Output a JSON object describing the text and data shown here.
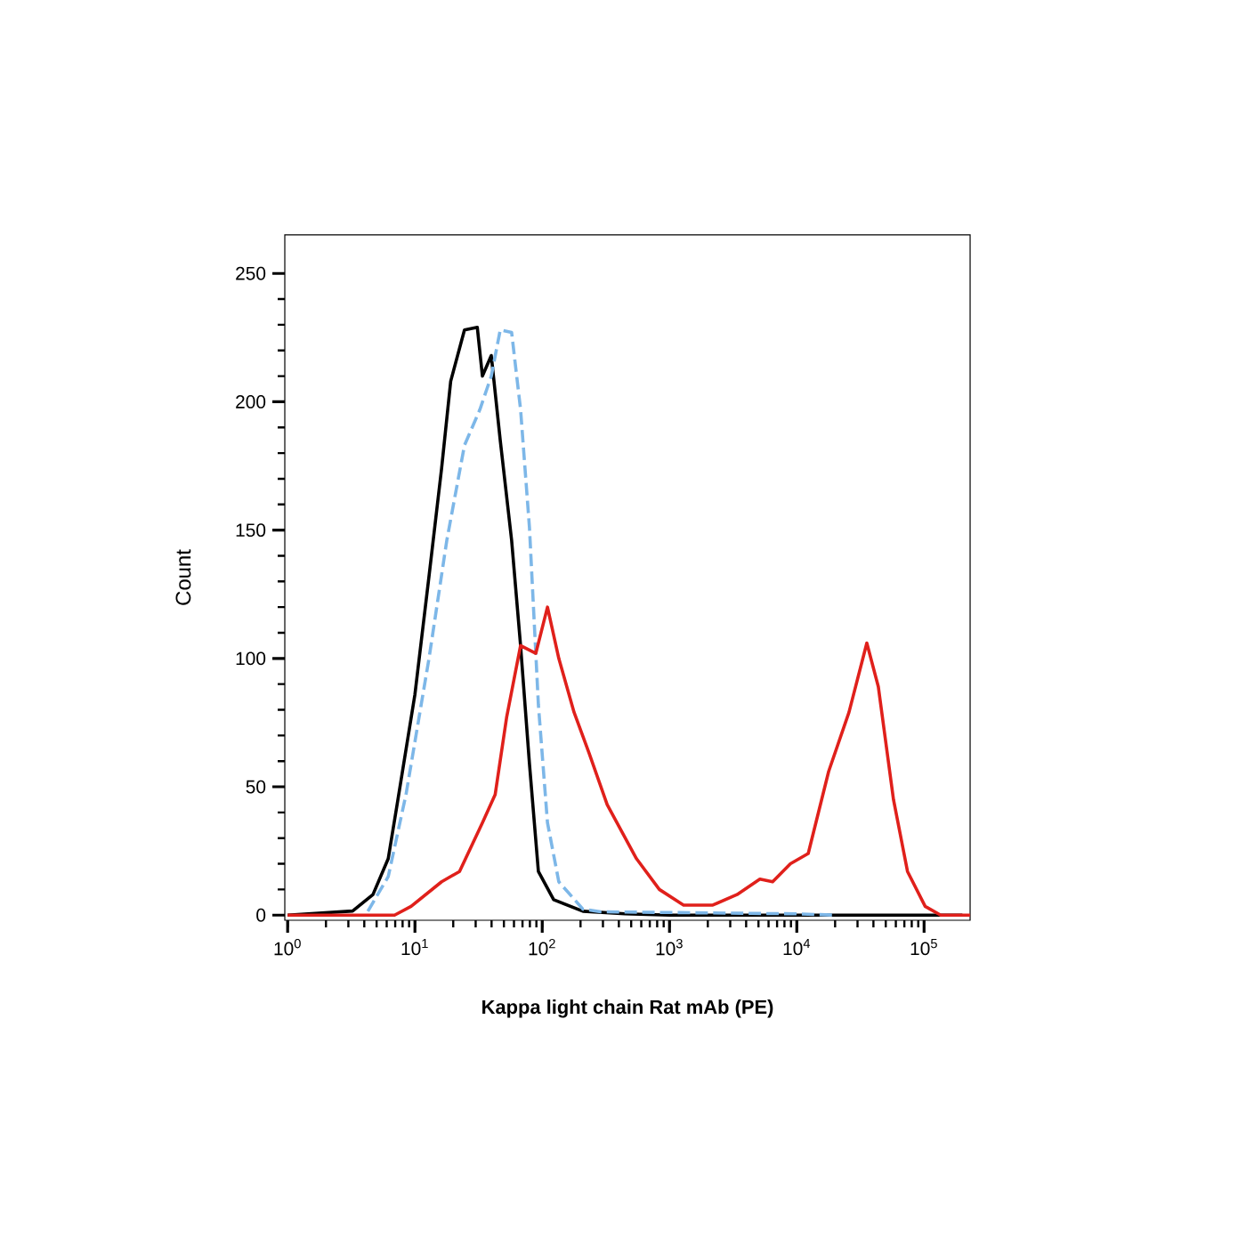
{
  "chart_data": {
    "type": "line",
    "xlabel": "Kappa light chain Rat mAb (PE)",
    "ylabel": "Count",
    "log": "x",
    "xlim": [
      0.95,
      230000
    ],
    "ylim": [
      -2,
      265
    ],
    "xticks": [
      {
        "value": 1,
        "label": "10$^{0}$"
      },
      {
        "value": 10,
        "label": "10$^{1}$"
      },
      {
        "value": 100,
        "label": "10$^{2}$"
      },
      {
        "value": 1000,
        "label": "10$^{3}$"
      },
      {
        "value": 10000,
        "label": "10$^{4}$"
      },
      {
        "value": 100000,
        "label": "10$^{5}$"
      }
    ],
    "yticks": [
      0,
      50,
      100,
      150,
      200,
      250
    ],
    "grid": false,
    "marker": "none",
    "series": [
      {
        "color": "#000000",
        "line_style": "solid",
        "x": [
          1,
          3.24,
          4.68,
          6.17,
          7.24,
          10,
          12.9,
          16.2,
          19.1,
          24.5,
          30.9,
          33.9,
          39.8,
          46.8,
          57.5,
          67.6,
          79.4,
          93.3,
          123,
          209,
          447,
          1000,
          200000
        ],
        "values": [
          0,
          1.6,
          8,
          22,
          43,
          86,
          132,
          174,
          208,
          228,
          229,
          210,
          218,
          185,
          146,
          105,
          59,
          17,
          6,
          1.5,
          0.5,
          0,
          0
        ]
      },
      {
        "color": "#7db7e8",
        "line_style": "dashed",
        "x": [
          4.27,
          6.17,
          8.51,
          12.9,
          17.8,
          24.5,
          32.4,
          39.8,
          46.8,
          57.5,
          67.6,
          79.4,
          93.3,
          110,
          135,
          209,
          288,
          10000,
          20000
        ],
        "values": [
          1.5,
          15,
          47,
          100,
          146,
          183,
          197,
          210,
          228,
          227,
          197,
          151,
          82,
          36,
          13,
          2.3,
          1.3,
          0.5,
          0
        ]
      },
      {
        "color": "#e0201b",
        "line_style": "solid",
        "x": [
          1,
          6.92,
          9.33,
          16.2,
          22.4,
          33.9,
          42.7,
          52.5,
          67.6,
          89.1,
          110,
          135,
          178,
          234,
          324,
          550,
          832,
          1290,
          2190,
          3390,
          5130,
          6460,
          8910,
          12300,
          17800,
          25700,
          35500,
          43700,
          57500,
          74100,
          102000,
          135000,
          230000
        ],
        "values": [
          0,
          0,
          3.4,
          13,
          17,
          36,
          47,
          77,
          105,
          102,
          120,
          100,
          79,
          63,
          43,
          22,
          10,
          3.9,
          3.9,
          8,
          14,
          13,
          20,
          24,
          56,
          79,
          106,
          89,
          45,
          17,
          3.4,
          0,
          0
        ]
      }
    ]
  }
}
